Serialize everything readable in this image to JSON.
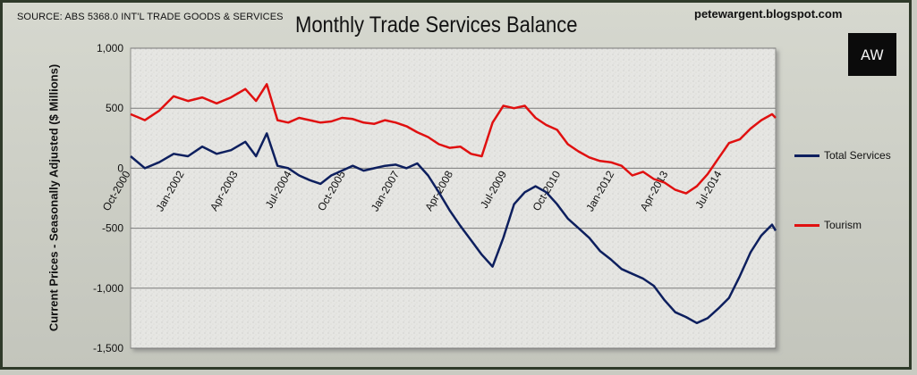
{
  "header": {
    "source": "SOURCE: ABS 5368.0 INT'L TRADE GOODS & SERVICES",
    "blog": "petewargent.blogspot.com",
    "logo_text": "AW"
  },
  "chart_data": {
    "type": "line",
    "title": "Monthly Trade Services Balance",
    "ylabel": "Current Prices - Seasonally Adjusted ($ Millions)",
    "xlabel": "",
    "ylim": [
      -1500,
      1000
    ],
    "yticks": [
      1000,
      500,
      0,
      -500,
      -1000,
      -1500
    ],
    "ytick_labels": [
      "1,000",
      "500",
      "0",
      "-500",
      "-1,000",
      "-1,500"
    ],
    "x_start": "2000-10",
    "x_end": "2015-10",
    "xtick_labels": [
      "Oct-2000",
      "Jan-2002",
      "Apr-2003",
      "Jul-2004",
      "Oct-2005",
      "Jan-2007",
      "Apr-2008",
      "Jul-2009",
      "Oct-2010",
      "Jan-2012",
      "Apr-2013",
      "Jul-2014"
    ],
    "grid": true,
    "legend_position": "right",
    "colors": {
      "total": "#0d1f5e",
      "tourism": "#e01010",
      "plot_bg": "#e8e8e6",
      "grid": "#7a7a7a"
    },
    "series": [
      {
        "name": "Total Services",
        "key": "total",
        "points": [
          [
            "2000-10",
            100
          ],
          [
            "2001-02",
            0
          ],
          [
            "2001-06",
            50
          ],
          [
            "2001-10",
            120
          ],
          [
            "2002-02",
            100
          ],
          [
            "2002-06",
            180
          ],
          [
            "2002-10",
            120
          ],
          [
            "2003-02",
            150
          ],
          [
            "2003-06",
            220
          ],
          [
            "2003-09",
            100
          ],
          [
            "2003-12",
            290
          ],
          [
            "2004-03",
            20
          ],
          [
            "2004-06",
            0
          ],
          [
            "2004-09",
            -60
          ],
          [
            "2004-12",
            -100
          ],
          [
            "2005-03",
            -130
          ],
          [
            "2005-06",
            -60
          ],
          [
            "2005-09",
            -20
          ],
          [
            "2005-12",
            20
          ],
          [
            "2006-03",
            -20
          ],
          [
            "2006-06",
            0
          ],
          [
            "2006-09",
            20
          ],
          [
            "2006-12",
            30
          ],
          [
            "2007-03",
            0
          ],
          [
            "2007-06",
            40
          ],
          [
            "2007-09",
            -60
          ],
          [
            "2007-12",
            -200
          ],
          [
            "2008-03",
            -350
          ],
          [
            "2008-06",
            -480
          ],
          [
            "2008-09",
            -600
          ],
          [
            "2008-12",
            -720
          ],
          [
            "2009-03",
            -820
          ],
          [
            "2009-06",
            -580
          ],
          [
            "2009-09",
            -300
          ],
          [
            "2009-12",
            -200
          ],
          [
            "2010-03",
            -150
          ],
          [
            "2010-06",
            -200
          ],
          [
            "2010-09",
            -300
          ],
          [
            "2010-12",
            -420
          ],
          [
            "2011-03",
            -500
          ],
          [
            "2011-06",
            -580
          ],
          [
            "2011-09",
            -690
          ],
          [
            "2011-12",
            -760
          ],
          [
            "2012-03",
            -840
          ],
          [
            "2012-06",
            -880
          ],
          [
            "2012-09",
            -920
          ],
          [
            "2012-12",
            -980
          ],
          [
            "2013-03",
            -1100
          ],
          [
            "2013-06",
            -1200
          ],
          [
            "2013-09",
            -1240
          ],
          [
            "2013-12",
            -1290
          ],
          [
            "2014-03",
            -1250
          ],
          [
            "2014-06",
            -1170
          ],
          [
            "2014-09",
            -1080
          ],
          [
            "2014-12",
            -900
          ],
          [
            "2015-03",
            -700
          ],
          [
            "2015-06",
            -560
          ],
          [
            "2015-09",
            -470
          ],
          [
            "2015-10",
            -520
          ]
        ]
      },
      {
        "name": "Tourism",
        "key": "tourism",
        "points": [
          [
            "2000-10",
            450
          ],
          [
            "2001-02",
            400
          ],
          [
            "2001-06",
            480
          ],
          [
            "2001-10",
            600
          ],
          [
            "2002-02",
            560
          ],
          [
            "2002-06",
            590
          ],
          [
            "2002-10",
            540
          ],
          [
            "2003-02",
            590
          ],
          [
            "2003-06",
            660
          ],
          [
            "2003-09",
            560
          ],
          [
            "2003-12",
            700
          ],
          [
            "2004-03",
            400
          ],
          [
            "2004-06",
            380
          ],
          [
            "2004-09",
            420
          ],
          [
            "2004-12",
            400
          ],
          [
            "2005-03",
            380
          ],
          [
            "2005-06",
            390
          ],
          [
            "2005-09",
            420
          ],
          [
            "2005-12",
            410
          ],
          [
            "2006-03",
            380
          ],
          [
            "2006-06",
            370
          ],
          [
            "2006-09",
            400
          ],
          [
            "2006-12",
            380
          ],
          [
            "2007-03",
            350
          ],
          [
            "2007-06",
            300
          ],
          [
            "2007-09",
            260
          ],
          [
            "2007-12",
            200
          ],
          [
            "2008-03",
            170
          ],
          [
            "2008-06",
            180
          ],
          [
            "2008-09",
            120
          ],
          [
            "2008-12",
            100
          ],
          [
            "2009-03",
            380
          ],
          [
            "2009-06",
            520
          ],
          [
            "2009-09",
            500
          ],
          [
            "2009-12",
            520
          ],
          [
            "2010-03",
            420
          ],
          [
            "2010-06",
            360
          ],
          [
            "2010-09",
            320
          ],
          [
            "2010-12",
            200
          ],
          [
            "2011-03",
            140
          ],
          [
            "2011-06",
            90
          ],
          [
            "2011-09",
            60
          ],
          [
            "2011-12",
            50
          ],
          [
            "2012-03",
            20
          ],
          [
            "2012-06",
            -60
          ],
          [
            "2012-09",
            -30
          ],
          [
            "2012-12",
            -90
          ],
          [
            "2013-03",
            -120
          ],
          [
            "2013-06",
            -180
          ],
          [
            "2013-09",
            -210
          ],
          [
            "2013-12",
            -150
          ],
          [
            "2014-03",
            -50
          ],
          [
            "2014-06",
            80
          ],
          [
            "2014-09",
            210
          ],
          [
            "2014-12",
            240
          ],
          [
            "2015-03",
            330
          ],
          [
            "2015-06",
            400
          ],
          [
            "2015-09",
            450
          ],
          [
            "2015-10",
            420
          ]
        ]
      }
    ]
  }
}
